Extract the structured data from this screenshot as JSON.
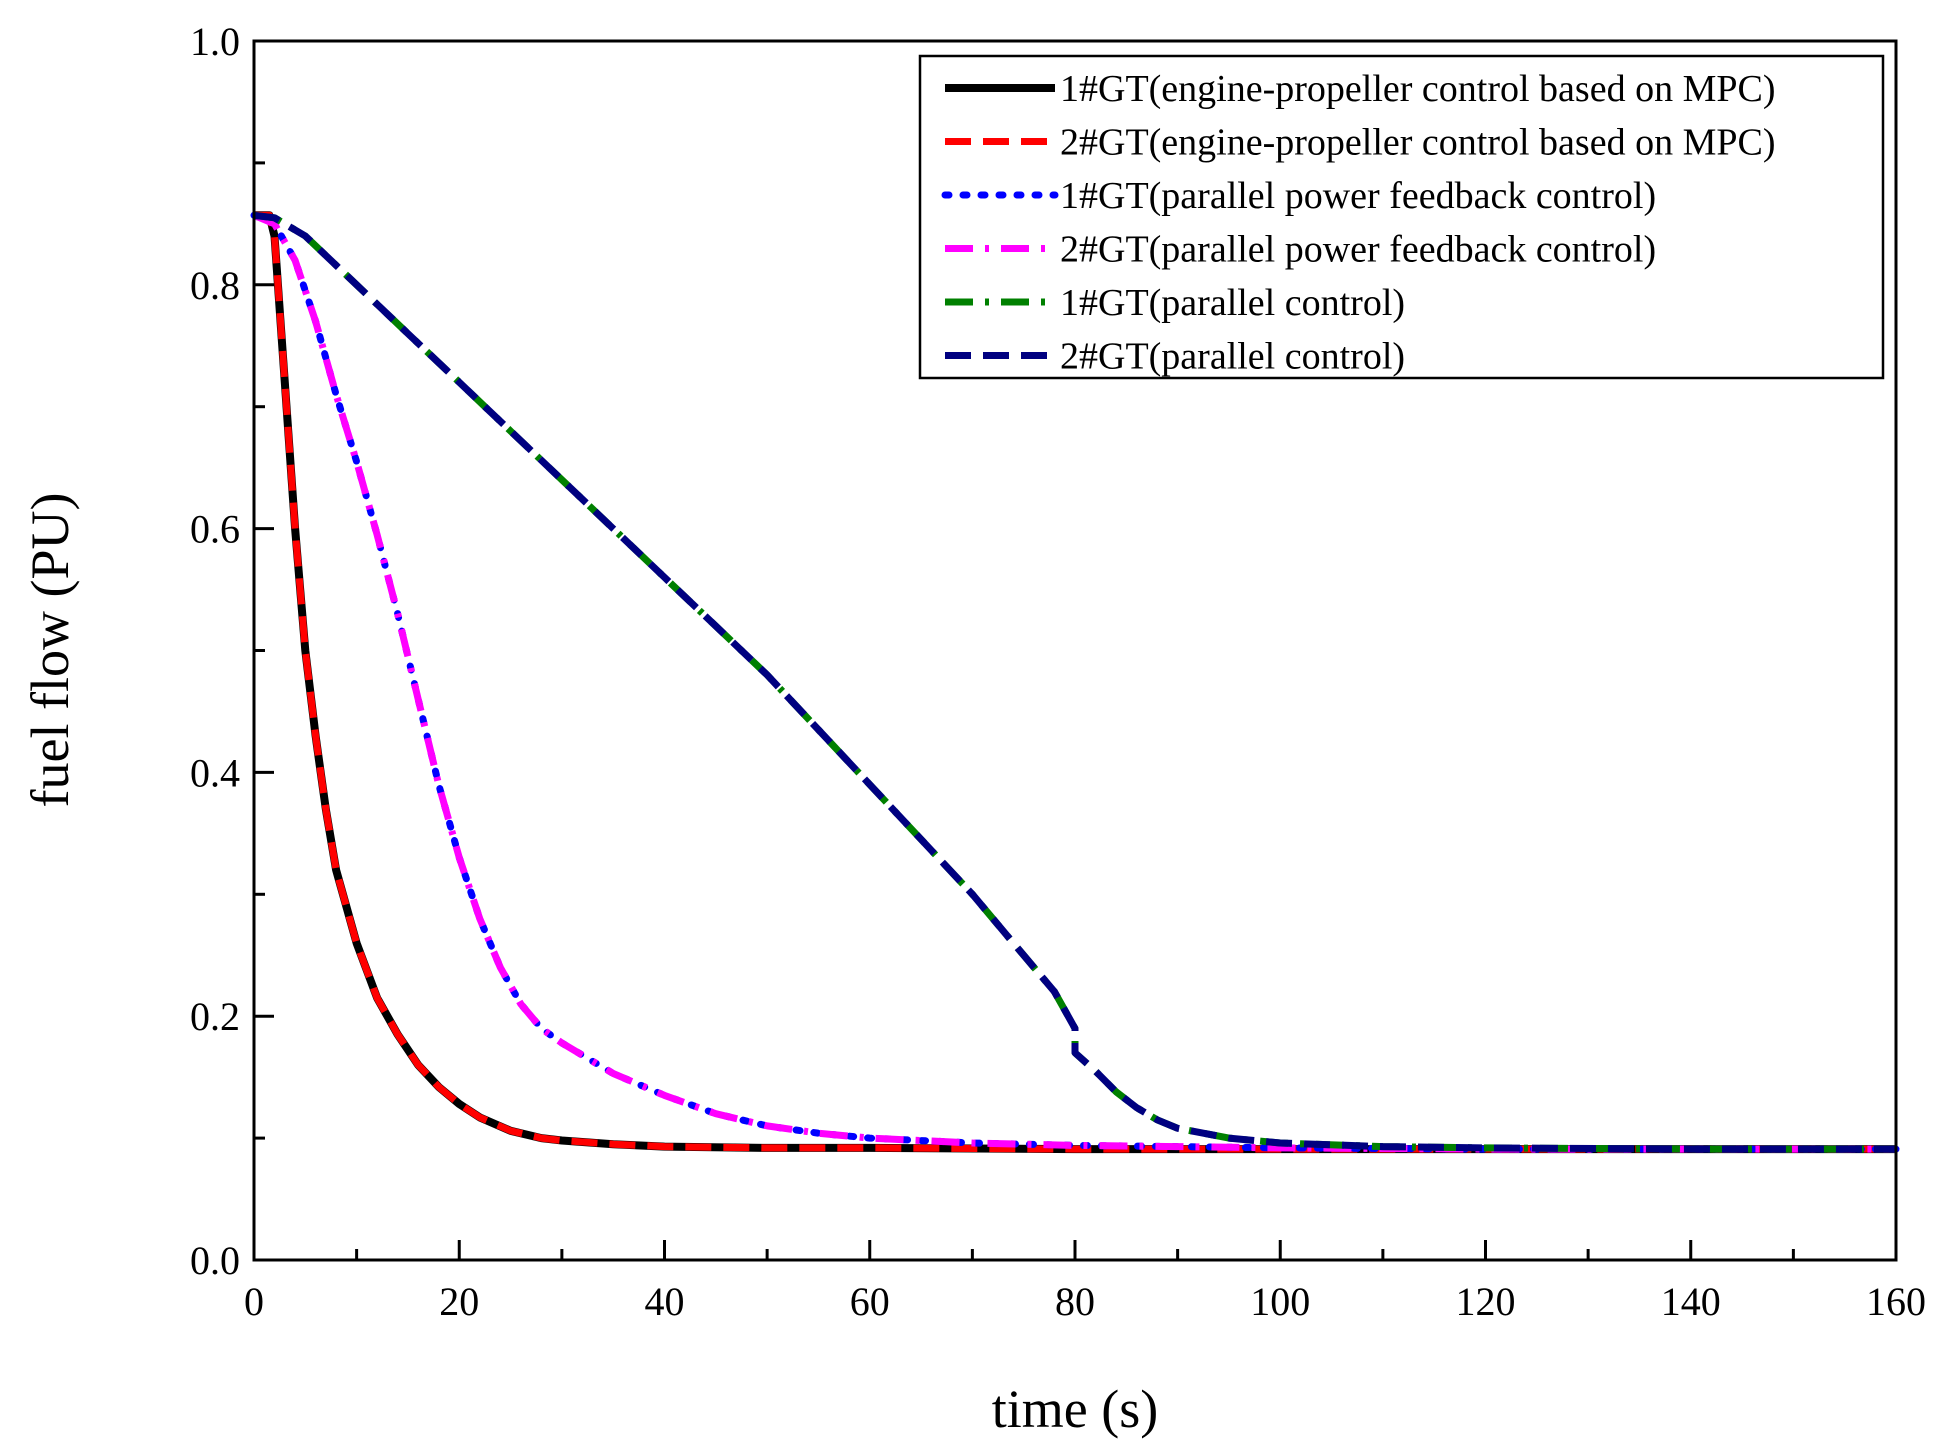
{
  "chart_data": {
    "type": "line",
    "title": "",
    "xlabel": "time (s)",
    "ylabel": "fuel flow (PU)",
    "xlim": [
      0,
      160
    ],
    "ylim": [
      0.0,
      1.0
    ],
    "xticks": [
      0,
      20,
      40,
      60,
      80,
      100,
      120,
      140,
      160
    ],
    "xtick_labels": [
      "0",
      "20",
      "40",
      "60",
      "80",
      "100",
      "120",
      "140",
      "160"
    ],
    "yticks": [
      0.0,
      0.2,
      0.4,
      0.6,
      0.8,
      1.0
    ],
    "ytick_labels": [
      "0.0",
      "0.2",
      "0.4",
      "0.6",
      "0.8",
      "1.0"
    ],
    "grid": false,
    "legend_position": "top-right",
    "series": [
      {
        "name": "1#GT(engine-propeller control based on MPC)",
        "color": "#000000",
        "style": "solid",
        "x": [
          0,
          1.5,
          2,
          3,
          4,
          5,
          6,
          7,
          8,
          10,
          12,
          14,
          16,
          18,
          20,
          22,
          25,
          28,
          30,
          35,
          40,
          50,
          60,
          80,
          100,
          120,
          140,
          160
        ],
        "y": [
          0.857,
          0.857,
          0.84,
          0.72,
          0.6,
          0.5,
          0.43,
          0.37,
          0.32,
          0.26,
          0.215,
          0.185,
          0.16,
          0.142,
          0.128,
          0.117,
          0.106,
          0.1,
          0.098,
          0.095,
          0.093,
          0.092,
          0.092,
          0.091,
          0.091,
          0.091,
          0.091,
          0.091
        ]
      },
      {
        "name": "2#GT(engine-propeller control based on MPC)",
        "color": "#ff0000",
        "style": "dashed",
        "x": [
          0,
          1.5,
          2,
          3,
          4,
          5,
          6,
          7,
          8,
          10,
          12,
          14,
          16,
          18,
          20,
          22,
          25,
          28,
          30,
          35,
          40,
          50,
          60,
          80,
          100,
          120,
          140,
          160
        ],
        "y": [
          0.857,
          0.857,
          0.84,
          0.72,
          0.6,
          0.5,
          0.43,
          0.37,
          0.32,
          0.26,
          0.215,
          0.185,
          0.16,
          0.142,
          0.128,
          0.117,
          0.106,
          0.1,
          0.098,
          0.095,
          0.093,
          0.092,
          0.092,
          0.091,
          0.091,
          0.091,
          0.091,
          0.091
        ]
      },
      {
        "name": "1#GT(parallel power feedback control)",
        "color": "#0000ff",
        "style": "dotted",
        "x": [
          0,
          2,
          4,
          6,
          8,
          10,
          12,
          14,
          16,
          18,
          20,
          22,
          24,
          26,
          27,
          28,
          30,
          35,
          40,
          45,
          50,
          55,
          60,
          70,
          80,
          90,
          100,
          120,
          140,
          160
        ],
        "y": [
          0.857,
          0.85,
          0.82,
          0.77,
          0.71,
          0.655,
          0.595,
          0.53,
          0.46,
          0.39,
          0.33,
          0.28,
          0.24,
          0.21,
          0.2,
          0.19,
          0.178,
          0.153,
          0.135,
          0.12,
          0.11,
          0.104,
          0.1,
          0.096,
          0.094,
          0.093,
          0.092,
          0.091,
          0.091,
          0.091
        ]
      },
      {
        "name": "2#GT(parallel power feedback control)",
        "color": "#ff00ff",
        "style": "dashdot",
        "x": [
          0,
          2,
          4,
          6,
          8,
          10,
          12,
          14,
          16,
          18,
          20,
          22,
          24,
          26,
          27,
          28,
          30,
          35,
          40,
          45,
          50,
          55,
          60,
          70,
          80,
          90,
          100,
          120,
          140,
          160
        ],
        "y": [
          0.857,
          0.85,
          0.82,
          0.77,
          0.71,
          0.655,
          0.595,
          0.53,
          0.46,
          0.39,
          0.33,
          0.28,
          0.24,
          0.21,
          0.2,
          0.19,
          0.178,
          0.153,
          0.135,
          0.12,
          0.11,
          0.104,
          0.1,
          0.096,
          0.094,
          0.093,
          0.092,
          0.091,
          0.091,
          0.091
        ]
      },
      {
        "name": "1#GT(parallel control)",
        "color": "#008000",
        "style": "dashdot",
        "x": [
          0,
          2,
          5,
          10,
          15,
          20,
          25,
          30,
          35,
          40,
          45,
          50,
          55,
          60,
          65,
          70,
          75,
          78,
          80,
          80,
          82,
          84,
          86,
          88,
          90,
          95,
          100,
          110,
          120,
          140,
          160
        ],
        "y": [
          0.857,
          0.855,
          0.84,
          0.8,
          0.76,
          0.72,
          0.68,
          0.64,
          0.6,
          0.56,
          0.52,
          0.48,
          0.435,
          0.39,
          0.345,
          0.3,
          0.25,
          0.22,
          0.19,
          0.17,
          0.155,
          0.138,
          0.125,
          0.115,
          0.108,
          0.1,
          0.096,
          0.093,
          0.092,
          0.091,
          0.091
        ]
      },
      {
        "name": "2#GT(parallel control)",
        "color": "#000080",
        "style": "dashed",
        "x": [
          0,
          2,
          5,
          10,
          15,
          20,
          25,
          30,
          35,
          40,
          45,
          50,
          55,
          60,
          65,
          70,
          75,
          78,
          80,
          80,
          82,
          84,
          86,
          88,
          90,
          95,
          100,
          110,
          120,
          140,
          160
        ],
        "y": [
          0.857,
          0.855,
          0.84,
          0.8,
          0.76,
          0.72,
          0.68,
          0.64,
          0.6,
          0.56,
          0.52,
          0.48,
          0.435,
          0.39,
          0.345,
          0.3,
          0.25,
          0.22,
          0.19,
          0.17,
          0.155,
          0.138,
          0.125,
          0.115,
          0.108,
          0.1,
          0.096,
          0.093,
          0.092,
          0.091,
          0.091
        ]
      }
    ]
  }
}
